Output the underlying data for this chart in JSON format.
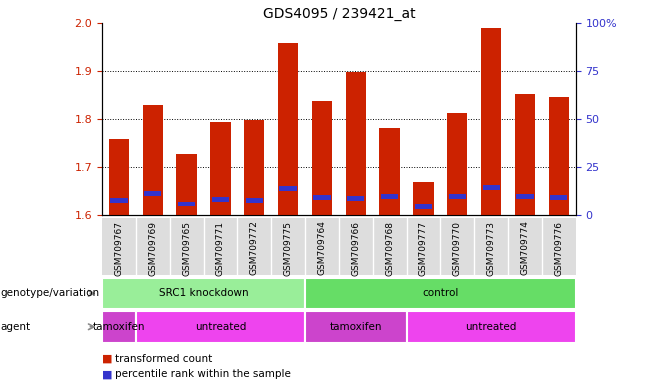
{
  "title": "GDS4095 / 239421_at",
  "samples": [
    "GSM709767",
    "GSM709769",
    "GSM709765",
    "GSM709771",
    "GSM709772",
    "GSM709775",
    "GSM709764",
    "GSM709766",
    "GSM709768",
    "GSM709777",
    "GSM709770",
    "GSM709773",
    "GSM709774",
    "GSM709776"
  ],
  "transformed_counts": [
    1.758,
    1.83,
    1.727,
    1.793,
    1.798,
    1.958,
    1.837,
    1.898,
    1.782,
    1.668,
    1.812,
    1.99,
    1.852,
    1.845
  ],
  "percentile_values": [
    1.63,
    1.645,
    1.623,
    1.632,
    1.63,
    1.655,
    1.637,
    1.635,
    1.638,
    1.617,
    1.638,
    1.657,
    1.638,
    1.637
  ],
  "ylim": [
    1.6,
    2.0
  ],
  "yticks": [
    1.6,
    1.7,
    1.8,
    1.9,
    2.0
  ],
  "right_yticks": [
    0,
    25,
    50,
    75,
    100
  ],
  "right_ytick_positions": [
    1.6,
    1.7,
    1.8,
    1.9,
    2.0
  ],
  "bar_color": "#cc2200",
  "percentile_color": "#3333cc",
  "bar_width": 0.6,
  "genotype_groups": [
    {
      "label": "SRC1 knockdown",
      "start": 0,
      "end": 5,
      "color": "#99ee99"
    },
    {
      "label": "control",
      "start": 6,
      "end": 13,
      "color": "#66dd66"
    }
  ],
  "agent_groups": [
    {
      "label": "tamoxifen",
      "start": 0,
      "end": 0,
      "color": "#cc44cc"
    },
    {
      "label": "untreated",
      "start": 1,
      "end": 5,
      "color": "#ee44ee"
    },
    {
      "label": "tamoxifen",
      "start": 6,
      "end": 8,
      "color": "#cc44cc"
    },
    {
      "label": "untreated",
      "start": 9,
      "end": 13,
      "color": "#ee44ee"
    }
  ],
  "legend_items": [
    {
      "label": "transformed count",
      "color": "#cc2200"
    },
    {
      "label": "percentile rank within the sample",
      "color": "#3333cc"
    }
  ],
  "label_fontsize": 7.5,
  "tick_fontsize": 7,
  "title_fontsize": 10,
  "xticklabel_fontsize": 6.5,
  "annotation_fontsize": 7.5
}
